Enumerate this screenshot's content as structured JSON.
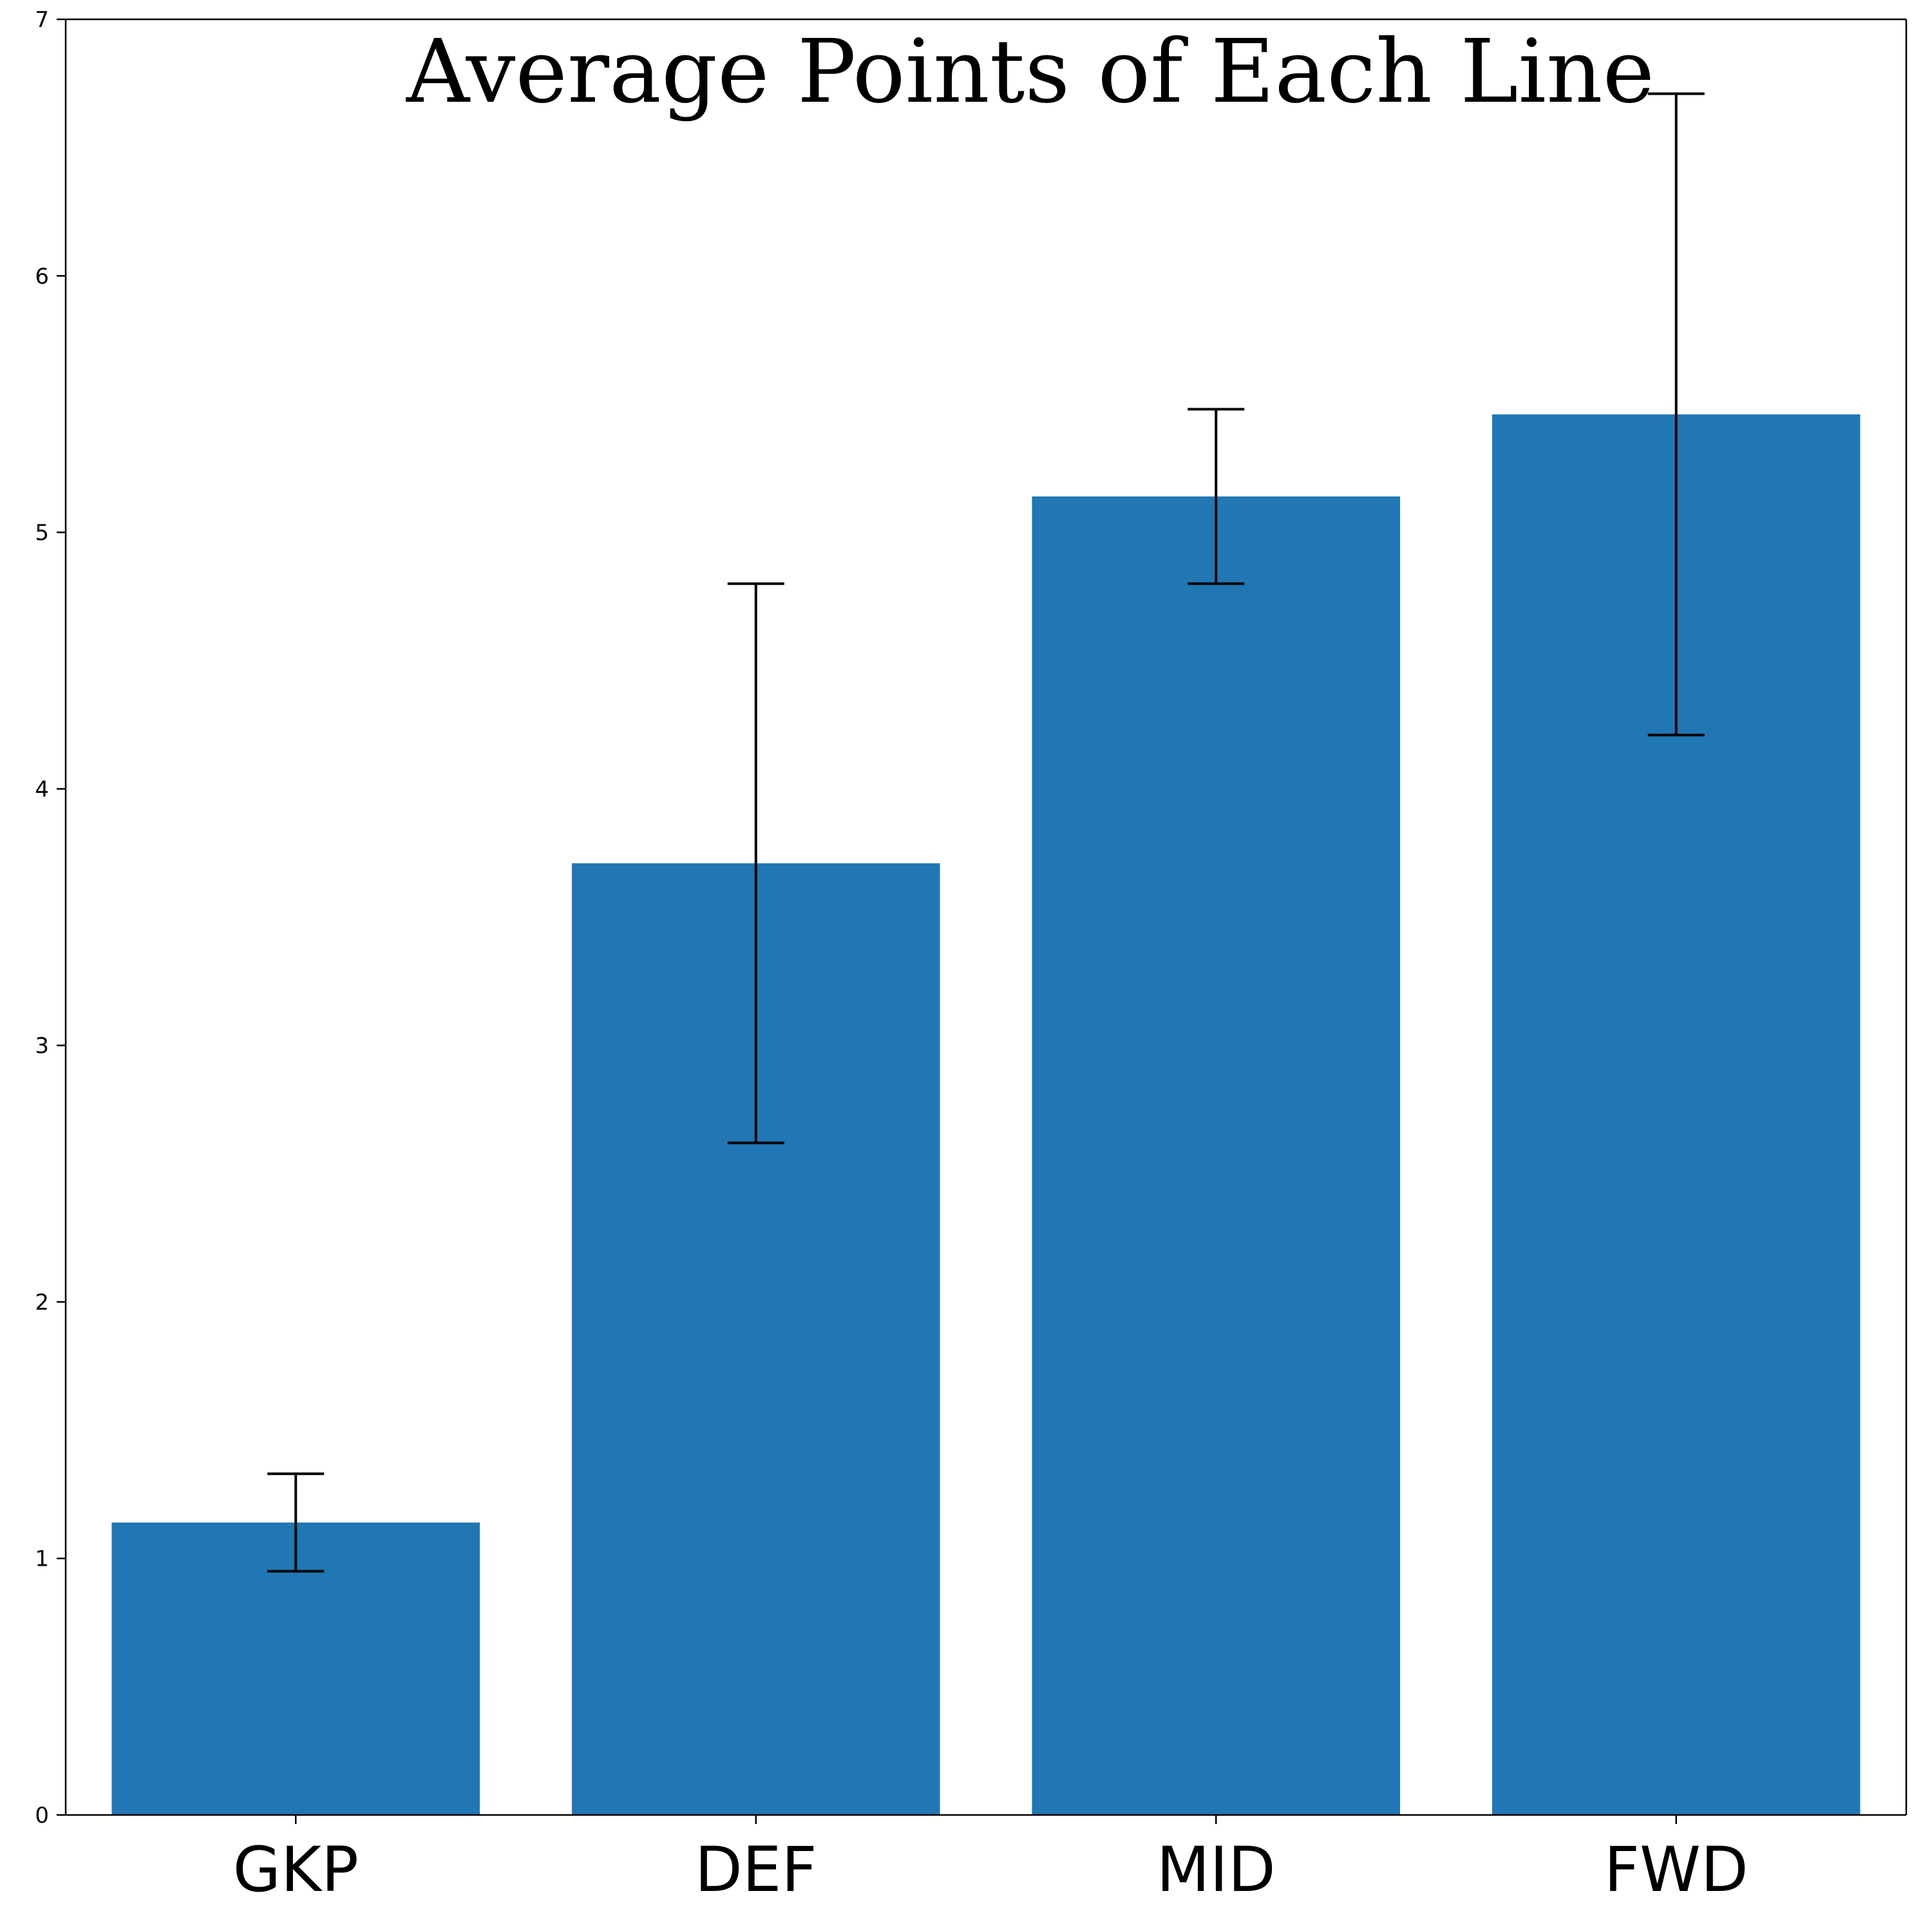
{
  "chart_data": {
    "type": "bar",
    "title": "Average Points of Each Line",
    "xlabel": "",
    "ylabel": "",
    "categories": [
      "GKP",
      "DEF",
      "MID",
      "FWD"
    ],
    "values": [
      1.14,
      3.71,
      5.14,
      5.46
    ],
    "error": [
      0.19,
      1.09,
      0.34,
      1.25
    ],
    "ylim": [
      0,
      7
    ],
    "yticks": [
      0,
      1,
      2,
      3,
      4,
      5,
      6,
      7
    ],
    "grid": false,
    "legend": "none",
    "colors": {
      "bar": "#2077b4",
      "errorbar": "#000000",
      "axis": "#000000"
    }
  }
}
